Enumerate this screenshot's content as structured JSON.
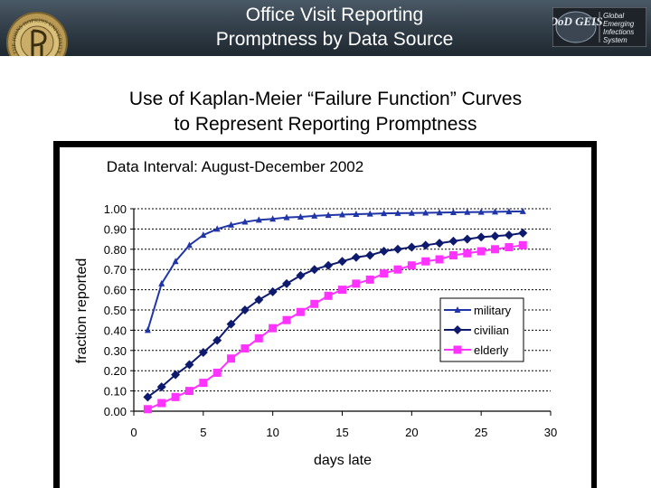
{
  "header": {
    "title_line1": "Office Visit Reporting",
    "title_line2": "Promptness by Data Source",
    "seal_text": "THE JOHNS HOPKINS UNIVERSITY",
    "logo_text_main": "DoD GEIS",
    "logo_text_lines": [
      "Global",
      "Emerging",
      "Infections",
      "System"
    ]
  },
  "subtitle": {
    "line1": "Use of Kaplan-Meier “Failure Function” Curves",
    "line2": "to Represent Reporting Promptness"
  },
  "chart_data": {
    "type": "line",
    "title": "Data Interval: August-December 2002",
    "xlabel": "days late",
    "ylabel": "fraction reported",
    "xlim": [
      0,
      30
    ],
    "ylim": [
      0,
      1
    ],
    "x_ticks": [
      "0",
      "5",
      "10",
      "15",
      "20",
      "25",
      "30"
    ],
    "y_ticks": [
      "0.00",
      "0.10",
      "0.20",
      "0.30",
      "0.40",
      "0.50",
      "0.60",
      "0.70",
      "0.80",
      "0.90",
      "1.00"
    ],
    "grid": "horizontal",
    "legend_position": "lower-right",
    "x": [
      1,
      2,
      3,
      4,
      5,
      6,
      7,
      8,
      9,
      10,
      11,
      12,
      13,
      14,
      15,
      16,
      17,
      18,
      19,
      20,
      21,
      22,
      23,
      24,
      25,
      26,
      27,
      28
    ],
    "series": [
      {
        "name": "military",
        "color": "#1f35a8",
        "marker": "triangle",
        "values": [
          0.4,
          0.63,
          0.74,
          0.82,
          0.87,
          0.9,
          0.92,
          0.935,
          0.945,
          0.95,
          0.957,
          0.96,
          0.965,
          0.968,
          0.971,
          0.973,
          0.975,
          0.977,
          0.978,
          0.979,
          0.98,
          0.981,
          0.982,
          0.983,
          0.984,
          0.985,
          0.986,
          0.987
        ]
      },
      {
        "name": "civilian",
        "color": "#0d1a6e",
        "marker": "diamond",
        "values": [
          0.07,
          0.12,
          0.18,
          0.23,
          0.29,
          0.35,
          0.43,
          0.5,
          0.55,
          0.59,
          0.63,
          0.67,
          0.7,
          0.72,
          0.74,
          0.76,
          0.77,
          0.79,
          0.8,
          0.81,
          0.82,
          0.83,
          0.84,
          0.85,
          0.86,
          0.865,
          0.87,
          0.88
        ]
      },
      {
        "name": "elderly",
        "color": "#ff33ff",
        "marker": "square",
        "values": [
          0.01,
          0.04,
          0.07,
          0.1,
          0.14,
          0.19,
          0.26,
          0.31,
          0.36,
          0.41,
          0.45,
          0.49,
          0.53,
          0.57,
          0.6,
          0.63,
          0.65,
          0.68,
          0.7,
          0.72,
          0.74,
          0.75,
          0.77,
          0.78,
          0.79,
          0.8,
          0.81,
          0.82
        ]
      }
    ]
  }
}
